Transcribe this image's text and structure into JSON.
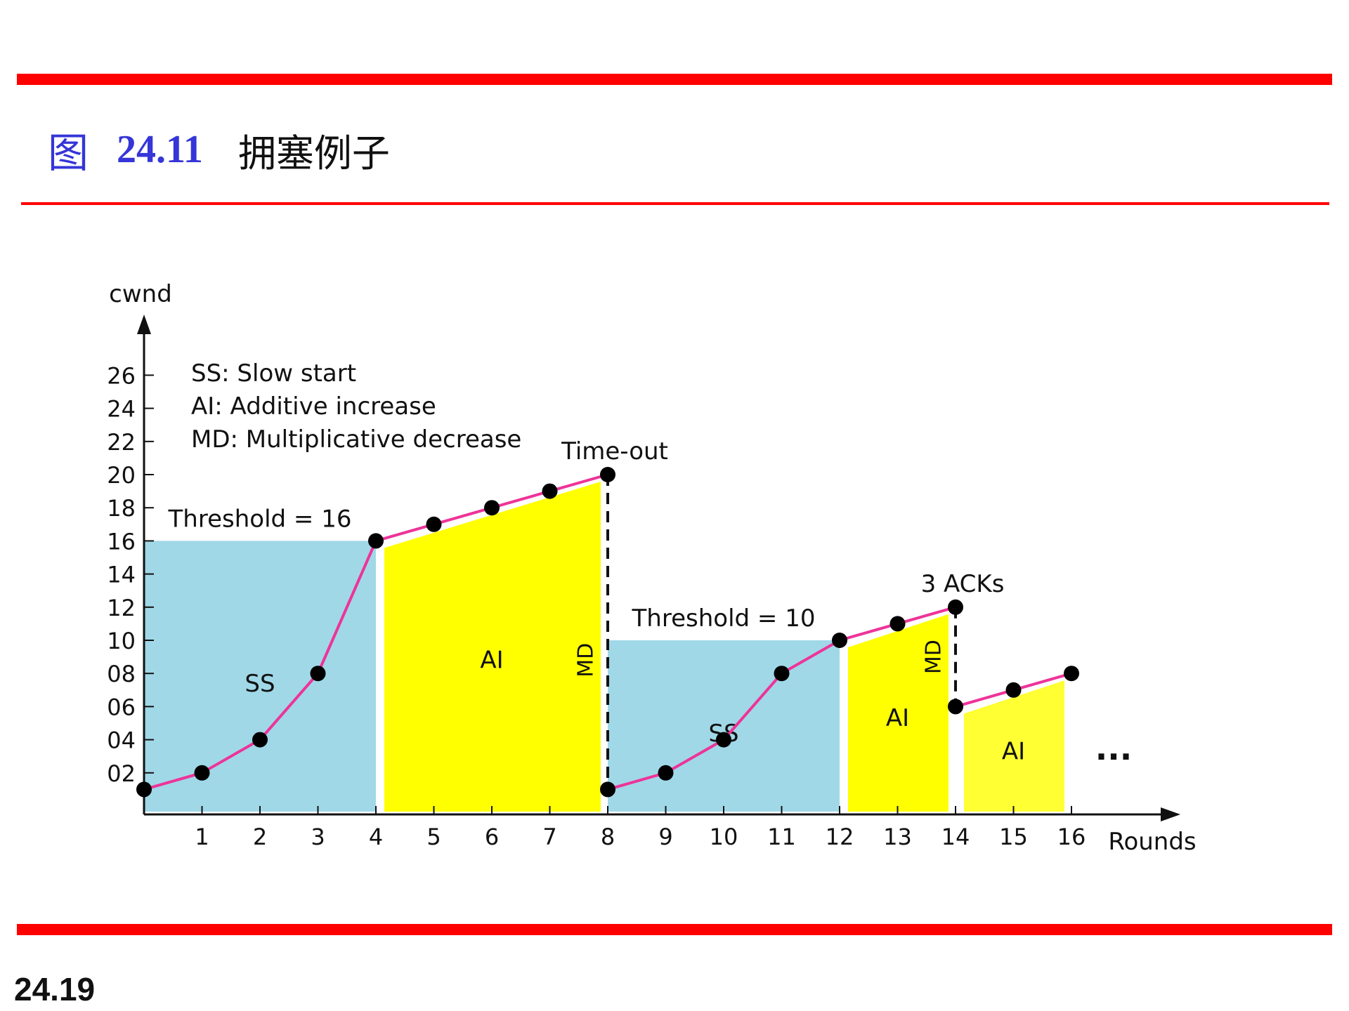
{
  "slide": {
    "fig_label": "图",
    "fig_number": "24.11",
    "fig_caption": "拥塞例子",
    "page_number": "24.19",
    "rule_color": "#ff0000",
    "title_color": "#3535d8"
  },
  "chart_data": {
    "type": "line",
    "ylabel": "cwnd",
    "xlabel": "Rounds",
    "x_ticks": [
      "1",
      "2",
      "3",
      "4",
      "5",
      "6",
      "7",
      "8",
      "9",
      "10",
      "11",
      "12",
      "13",
      "14",
      "15",
      "16"
    ],
    "y_ticks": [
      "02",
      "04",
      "06",
      "08",
      "10",
      "12",
      "14",
      "16",
      "18",
      "20",
      "22",
      "24",
      "26"
    ],
    "xlim": [
      0,
      16
    ],
    "ylim": [
      0,
      26
    ],
    "legend": [
      "SS: Slow start",
      "AI: Additive increase",
      "MD: Multiplicative decrease"
    ],
    "series": [
      {
        "color": "#ee3399",
        "x": [
          0,
          1,
          2,
          3,
          4,
          5,
          6,
          7,
          8,
          8,
          9,
          10,
          11,
          12,
          13,
          14,
          14,
          15,
          16
        ],
        "y": [
          1,
          2,
          4,
          8,
          16,
          17,
          18,
          19,
          20,
          1,
          2,
          4,
          8,
          10,
          11,
          12,
          6,
          7,
          8
        ]
      }
    ],
    "regions": [
      {
        "label": "SS",
        "x": [
          0,
          4
        ],
        "y": [
          1,
          16
        ],
        "color": "#a0d8e8"
      },
      {
        "label": "AI",
        "x": [
          4,
          8
        ],
        "y": [
          16,
          20
        ],
        "color": "#ffff00"
      },
      {
        "label": "SS",
        "x": [
          8,
          12
        ],
        "y": [
          1,
          10
        ],
        "color": "#a0d8e8"
      },
      {
        "label": "AI",
        "x": [
          12,
          14
        ],
        "y": [
          10,
          12
        ],
        "color": "#ffff00"
      },
      {
        "label": "AI",
        "x": [
          14,
          16
        ],
        "y": [
          6,
          8
        ],
        "color": "#ffff33"
      }
    ],
    "thresholds": [
      {
        "label": "Threshold = 16",
        "value": 16,
        "x": [
          0,
          4
        ]
      },
      {
        "label": "Threshold = 10",
        "value": 10,
        "x": [
          8,
          12
        ]
      }
    ],
    "events": [
      {
        "label": "Time-out",
        "x": 8,
        "y": 20
      },
      {
        "label": "3 ACKs",
        "x": 14,
        "y": 12
      }
    ],
    "md_drops": [
      {
        "label": "MD",
        "x": 8,
        "from": 20,
        "to": 1
      },
      {
        "label": "MD",
        "x": 14,
        "from": 12,
        "to": 6
      }
    ],
    "continuation": "..."
  }
}
